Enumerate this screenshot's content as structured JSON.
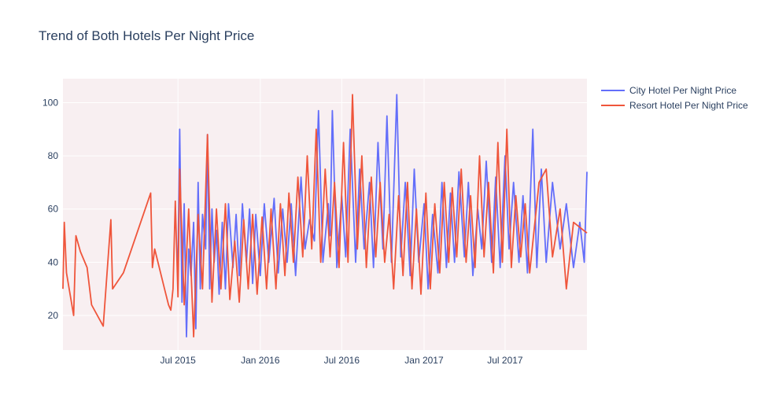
{
  "chart_data": {
    "type": "line",
    "title": "Trend of Both Hotels Per Night Price",
    "xlabel": "",
    "ylabel": "",
    "x_tick_labels": [
      "Jul 2015",
      "Jan 2016",
      "Jul 2016",
      "Jan 2017",
      "Jul 2017"
    ],
    "y_ticks": [
      20,
      40,
      60,
      80,
      100
    ],
    "ylim": [
      7,
      109
    ],
    "xlim": [
      "2014-10-17",
      "2017-12-31"
    ],
    "grid": true,
    "legend_position": "top-right",
    "series": [
      {
        "name": "City Hotel Per Night Price",
        "color": "#636efa",
        "x": [
          "2015-07-01",
          "2015-07-05",
          "2015-07-10",
          "2015-07-15",
          "2015-07-20",
          "2015-07-25",
          "2015-07-30",
          "2015-08-05",
          "2015-08-10",
          "2015-08-15",
          "2015-08-20",
          "2015-08-25",
          "2015-09-01",
          "2015-09-05",
          "2015-09-10",
          "2015-09-15",
          "2015-09-20",
          "2015-09-25",
          "2015-10-01",
          "2015-10-08",
          "2015-10-15",
          "2015-10-22",
          "2015-11-01",
          "2015-11-08",
          "2015-11-15",
          "2015-11-22",
          "2015-12-01",
          "2015-12-08",
          "2015-12-15",
          "2015-12-22",
          "2016-01-01",
          "2016-01-10",
          "2016-01-20",
          "2016-02-01",
          "2016-02-10",
          "2016-02-20",
          "2016-03-01",
          "2016-03-10",
          "2016-03-20",
          "2016-04-01",
          "2016-04-10",
          "2016-04-20",
          "2016-05-01",
          "2016-05-10",
          "2016-05-20",
          "2016-06-01",
          "2016-06-05",
          "2016-06-10",
          "2016-06-20",
          "2016-07-01",
          "2016-07-10",
          "2016-07-20",
          "2016-08-01",
          "2016-08-10",
          "2016-08-20",
          "2016-09-01",
          "2016-09-10",
          "2016-09-20",
          "2016-10-01",
          "2016-10-10",
          "2016-10-20",
          "2016-11-01",
          "2016-11-10",
          "2016-11-20",
          "2016-12-01",
          "2016-12-10",
          "2016-12-20",
          "2017-01-01",
          "2017-01-10",
          "2017-01-20",
          "2017-02-01",
          "2017-02-10",
          "2017-02-20",
          "2017-03-01",
          "2017-03-10",
          "2017-03-20",
          "2017-04-01",
          "2017-04-10",
          "2017-04-20",
          "2017-05-01",
          "2017-05-10",
          "2017-05-20",
          "2017-06-01",
          "2017-06-10",
          "2017-06-20",
          "2017-07-01",
          "2017-07-10",
          "2017-07-20",
          "2017-08-01",
          "2017-08-10",
          "2017-08-20",
          "2017-09-01",
          "2017-09-10",
          "2017-09-20",
          "2017-10-01",
          "2017-10-15",
          "2017-11-01",
          "2017-11-15",
          "2017-12-01",
          "2017-12-15",
          "2017-12-25",
          "2017-12-31"
        ],
        "values": [
          40,
          90,
          25,
          62,
          12,
          45,
          35,
          55,
          15,
          70,
          30,
          58,
          45,
          88,
          30,
          60,
          40,
          52,
          28,
          55,
          30,
          62,
          38,
          58,
          35,
          62,
          40,
          60,
          32,
          58,
          35,
          62,
          40,
          64,
          36,
          60,
          40,
          62,
          35,
          72,
          45,
          56,
          48,
          97,
          40,
          62,
          50,
          97,
          38,
          65,
          42,
          90,
          40,
          75,
          45,
          70,
          38,
          85,
          45,
          95,
          40,
          103,
          42,
          70,
          35,
          75,
          40,
          62,
          30,
          58,
          36,
          70,
          38,
          66,
          40,
          74,
          42,
          70,
          35,
          60,
          45,
          78,
          40,
          72,
          38,
          80,
          45,
          70,
          40,
          65,
          36,
          90,
          38,
          75,
          40,
          70,
          45,
          62,
          38,
          55,
          40,
          74
        ]
      },
      {
        "name": "Resort Hotel Per Night Price",
        "color": "#ef553b",
        "x": [
          "2014-10-17",
          "2014-10-20",
          "2014-10-25",
          "2014-11-10",
          "2014-11-15",
          "2014-11-25",
          "2014-12-10",
          "2014-12-20",
          "2015-01-15",
          "2015-02-01",
          "2015-02-05",
          "2015-03-01",
          "2015-05-01",
          "2015-05-05",
          "2015-05-10",
          "2015-06-01",
          "2015-06-10",
          "2015-06-15",
          "2015-06-20",
          "2015-06-25",
          "2015-07-01",
          "2015-07-05",
          "2015-07-15",
          "2015-07-25",
          "2015-08-05",
          "2015-08-15",
          "2015-08-25",
          "2015-09-05",
          "2015-09-15",
          "2015-09-25",
          "2015-10-05",
          "2015-10-15",
          "2015-10-25",
          "2015-11-05",
          "2015-11-15",
          "2015-11-25",
          "2015-12-05",
          "2015-12-15",
          "2015-12-25",
          "2016-01-05",
          "2016-01-15",
          "2016-01-25",
          "2016-02-05",
          "2016-02-15",
          "2016-02-25",
          "2016-03-05",
          "2016-03-15",
          "2016-03-25",
          "2016-04-05",
          "2016-04-15",
          "2016-04-25",
          "2016-05-05",
          "2016-05-15",
          "2016-05-25",
          "2016-06-05",
          "2016-06-15",
          "2016-06-25",
          "2016-07-05",
          "2016-07-15",
          "2016-07-25",
          "2016-08-05",
          "2016-08-15",
          "2016-08-25",
          "2016-09-05",
          "2016-09-15",
          "2016-09-25",
          "2016-10-05",
          "2016-10-15",
          "2016-10-25",
          "2016-11-05",
          "2016-11-15",
          "2016-11-25",
          "2016-12-05",
          "2016-12-15",
          "2016-12-25",
          "2017-01-05",
          "2017-01-15",
          "2017-01-25",
          "2017-02-05",
          "2017-02-15",
          "2017-02-25",
          "2017-03-05",
          "2017-03-15",
          "2017-03-25",
          "2017-04-05",
          "2017-04-15",
          "2017-04-25",
          "2017-05-05",
          "2017-05-15",
          "2017-05-25",
          "2017-06-05",
          "2017-06-15",
          "2017-06-25",
          "2017-07-05",
          "2017-07-15",
          "2017-07-25",
          "2017-08-05",
          "2017-08-15",
          "2017-08-25",
          "2017-09-15",
          "2017-10-01",
          "2017-10-15",
          "2017-11-01",
          "2017-11-15",
          "2017-12-01",
          "2017-12-31"
        ],
        "values": [
          30,
          55,
          36,
          20,
          50,
          44,
          38,
          24,
          16,
          56,
          30,
          36,
          66,
          38,
          45,
          30,
          24,
          22,
          30,
          63,
          27,
          75,
          24,
          60,
          12,
          58,
          30,
          88,
          25,
          60,
          30,
          62,
          26,
          48,
          25,
          56,
          30,
          58,
          28,
          57,
          30,
          60,
          30,
          62,
          35,
          66,
          40,
          72,
          42,
          80,
          45,
          90,
          40,
          75,
          42,
          70,
          38,
          85,
          40,
          103,
          45,
          80,
          38,
          72,
          42,
          70,
          40,
          58,
          30,
          65,
          35,
          70,
          30,
          60,
          28,
          66,
          30,
          62,
          36,
          70,
          40,
          68,
          42,
          75,
          40,
          65,
          38,
          80,
          42,
          70,
          36,
          85,
          40,
          90,
          38,
          65,
          42,
          62,
          36,
          70,
          75,
          42,
          60,
          30,
          55,
          51
        ]
      }
    ]
  }
}
